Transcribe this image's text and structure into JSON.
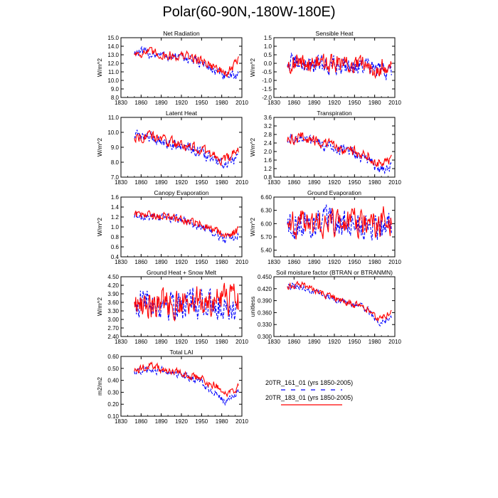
{
  "figure": {
    "title": "Polar(60-90N,-180W-180E)"
  },
  "legend": {
    "entries": [
      {
        "label": "20TR_161_01 (yrs 1850-2005)",
        "color": "#0000ff",
        "dash": "dashed"
      },
      {
        "label": "20TR_183_01 (yrs 1850-2005)",
        "color": "#ff0000",
        "dash": "solid"
      }
    ]
  },
  "chart_data": [
    {
      "type": "line",
      "title": "Net Radiation",
      "ylabel": "W/m^2",
      "xlim": [
        1830,
        2010
      ],
      "xticks": [
        1830,
        1860,
        1890,
        1920,
        1950,
        1980,
        2010
      ],
      "ylim": [
        8.0,
        15.0
      ],
      "yticks": [
        "8.0",
        "9.0",
        "10.0",
        "11.0",
        "12.0",
        "13.0",
        "14.0",
        "15.0"
      ],
      "x": [
        1850,
        2005
      ],
      "series": [
        {
          "name": "20TR_161_01 (yrs 1850-2005)",
          "color": "#0000ff",
          "anchors": [
            [
              1850,
              13.3
            ],
            [
              1870,
              13.2
            ],
            [
              1900,
              12.8
            ],
            [
              1930,
              12.6
            ],
            [
              1950,
              12.0
            ],
            [
              1965,
              11.3
            ],
            [
              1980,
              10.6
            ],
            [
              1990,
              10.3
            ],
            [
              2005,
              10.8
            ]
          ],
          "noise": 0.8
        },
        {
          "name": "20TR_183_01 (yrs 1850-2005)",
          "color": "#ff0000",
          "anchors": [
            [
              1850,
              13.2
            ],
            [
              1870,
              13.3
            ],
            [
              1900,
              12.9
            ],
            [
              1930,
              12.8
            ],
            [
              1950,
              12.3
            ],
            [
              1965,
              11.8
            ],
            [
              1980,
              11.0
            ],
            [
              1990,
              10.8
            ],
            [
              2005,
              12.5
            ]
          ],
          "noise": 0.8
        }
      ]
    },
    {
      "type": "line",
      "title": "Sensible Heat",
      "ylabel": "W/m^2",
      "xlim": [
        1830,
        2010
      ],
      "xticks": [
        1830,
        1860,
        1890,
        1920,
        1950,
        1980,
        2010
      ],
      "ylim": [
        -2.0,
        1.5
      ],
      "yticks": [
        "-2.0",
        "-1.5",
        "-1.0",
        "-0.5",
        "0.0",
        "0.5",
        "1.0",
        "1.5"
      ],
      "x": [
        1850,
        2005
      ],
      "series": [
        {
          "name": "20TR_161_01 (yrs 1850-2005)",
          "color": "#0000ff",
          "anchors": [
            [
              1850,
              0.0
            ],
            [
              1900,
              -0.1
            ],
            [
              1950,
              -0.1
            ],
            [
              1980,
              -0.4
            ],
            [
              2005,
              -0.5
            ]
          ],
          "noise": 0.75
        },
        {
          "name": "20TR_183_01 (yrs 1850-2005)",
          "color": "#ff0000",
          "anchors": [
            [
              1850,
              0.0
            ],
            [
              1900,
              0.0
            ],
            [
              1950,
              -0.1
            ],
            [
              1980,
              -0.2
            ],
            [
              2005,
              -0.1
            ]
          ],
          "noise": 0.75
        }
      ]
    },
    {
      "type": "line",
      "title": "Latent Heat",
      "ylabel": "W/m^2",
      "xlim": [
        1830,
        2010
      ],
      "xticks": [
        1830,
        1860,
        1890,
        1920,
        1950,
        1980,
        2010
      ],
      "ylim": [
        7.0,
        11.0
      ],
      "yticks": [
        "7.0",
        "8.0",
        "9.0",
        "10.0",
        "11.0"
      ],
      "x": [
        1850,
        2005
      ],
      "series": [
        {
          "name": "20TR_161_01 (yrs 1850-2005)",
          "color": "#0000ff",
          "anchors": [
            [
              1850,
              9.8
            ],
            [
              1870,
              9.7
            ],
            [
              1900,
              9.3
            ],
            [
              1930,
              9.0
            ],
            [
              1950,
              8.6
            ],
            [
              1970,
              8.1
            ],
            [
              1985,
              7.8
            ],
            [
              2005,
              8.3
            ]
          ],
          "noise": 0.5
        },
        {
          "name": "20TR_183_01 (yrs 1850-2005)",
          "color": "#ff0000",
          "anchors": [
            [
              1850,
              9.7
            ],
            [
              1870,
              9.8
            ],
            [
              1900,
              9.4
            ],
            [
              1930,
              9.1
            ],
            [
              1950,
              8.8
            ],
            [
              1970,
              8.4
            ],
            [
              1985,
              8.1
            ],
            [
              2005,
              8.8
            ]
          ],
          "noise": 0.5
        }
      ]
    },
    {
      "type": "line",
      "title": "Transpiration",
      "ylabel": "W/m^2",
      "xlim": [
        1830,
        2010
      ],
      "xticks": [
        1830,
        1860,
        1890,
        1920,
        1950,
        1980,
        2010
      ],
      "ylim": [
        0.8,
        3.6
      ],
      "yticks": [
        "0.8",
        "1.2",
        "1.6",
        "2.0",
        "2.4",
        "2.8",
        "3.2",
        "3.6"
      ],
      "x": [
        1850,
        2005
      ],
      "series": [
        {
          "name": "20TR_161_01 (yrs 1850-2005)",
          "color": "#0000ff",
          "anchors": [
            [
              1850,
              2.6
            ],
            [
              1870,
              2.6
            ],
            [
              1900,
              2.3
            ],
            [
              1930,
              2.1
            ],
            [
              1950,
              1.9
            ],
            [
              1970,
              1.6
            ],
            [
              1985,
              1.2
            ],
            [
              2005,
              1.3
            ]
          ],
          "noise": 0.35
        },
        {
          "name": "20TR_183_01 (yrs 1850-2005)",
          "color": "#ff0000",
          "anchors": [
            [
              1850,
              2.5
            ],
            [
              1870,
              2.7
            ],
            [
              1900,
              2.4
            ],
            [
              1930,
              2.2
            ],
            [
              1950,
              2.0
            ],
            [
              1970,
              1.8
            ],
            [
              1985,
              1.5
            ],
            [
              2005,
              1.6
            ]
          ],
          "noise": 0.35
        }
      ]
    },
    {
      "type": "line",
      "title": "Canopy Evaporation",
      "ylabel": "W/m^2",
      "xlim": [
        1830,
        2010
      ],
      "xticks": [
        1830,
        1860,
        1890,
        1920,
        1950,
        1980,
        2010
      ],
      "ylim": [
        0.4,
        1.6
      ],
      "yticks": [
        "0.4",
        "0.6",
        "0.8",
        "1.0",
        "1.2",
        "1.4",
        "1.6"
      ],
      "x": [
        1850,
        2005
      ],
      "series": [
        {
          "name": "20TR_161_01 (yrs 1850-2005)",
          "color": "#0000ff",
          "anchors": [
            [
              1850,
              1.2
            ],
            [
              1900,
              1.2
            ],
            [
              1930,
              1.1
            ],
            [
              1950,
              1.0
            ],
            [
              1970,
              0.85
            ],
            [
              1985,
              0.75
            ],
            [
              2005,
              0.85
            ]
          ],
          "noise": 0.12
        },
        {
          "name": "20TR_183_01 (yrs 1850-2005)",
          "color": "#ff0000",
          "anchors": [
            [
              1850,
              1.25
            ],
            [
              1900,
              1.2
            ],
            [
              1930,
              1.1
            ],
            [
              1950,
              1.05
            ],
            [
              1970,
              0.95
            ],
            [
              1985,
              0.8
            ],
            [
              2005,
              0.95
            ]
          ],
          "noise": 0.12
        }
      ]
    },
    {
      "type": "line",
      "title": "Ground Evaporation",
      "ylabel": "W/m^2",
      "xlim": [
        1830,
        2010
      ],
      "xticks": [
        1830,
        1860,
        1890,
        1920,
        1950,
        1980,
        2010
      ],
      "ylim": [
        5.25,
        6.6
      ],
      "yticks": [
        "5.40",
        "5.70",
        "6.00",
        "6.30",
        "6.60"
      ],
      "x": [
        1850,
        2005
      ],
      "series": [
        {
          "name": "20TR_161_01 (yrs 1850-2005)",
          "color": "#0000ff",
          "anchors": [
            [
              1850,
              6.0
            ],
            [
              1900,
              6.0
            ],
            [
              1950,
              5.95
            ],
            [
              2005,
              6.0
            ]
          ],
          "noise": 0.45
        },
        {
          "name": "20TR_183_01 (yrs 1850-2005)",
          "color": "#ff0000",
          "anchors": [
            [
              1850,
              6.0
            ],
            [
              1900,
              6.0
            ],
            [
              1950,
              6.0
            ],
            [
              2005,
              6.05
            ]
          ],
          "noise": 0.45
        }
      ]
    },
    {
      "type": "line",
      "title": "Ground Heat + Snow Melt",
      "ylabel": "W/m^2",
      "xlim": [
        1830,
        2010
      ],
      "xticks": [
        1830,
        1860,
        1890,
        1920,
        1950,
        1980,
        2010
      ],
      "ylim": [
        2.4,
        4.5
      ],
      "yticks": [
        "2.40",
        "2.70",
        "3.00",
        "3.30",
        "3.60",
        "3.90",
        "4.20",
        "4.50"
      ],
      "x": [
        1850,
        2005
      ],
      "series": [
        {
          "name": "20TR_161_01 (yrs 1850-2005)",
          "color": "#0000ff",
          "anchors": [
            [
              1850,
              3.6
            ],
            [
              1900,
              3.6
            ],
            [
              1950,
              3.55
            ],
            [
              2005,
              3.5
            ]
          ],
          "noise": 0.75
        },
        {
          "name": "20TR_183_01 (yrs 1850-2005)",
          "color": "#ff0000",
          "anchors": [
            [
              1850,
              3.6
            ],
            [
              1900,
              3.6
            ],
            [
              1950,
              3.6
            ],
            [
              2005,
              3.7
            ]
          ],
          "noise": 0.75
        }
      ]
    },
    {
      "type": "line",
      "title": "Soil moisture factor (BTRAN or BTRANMN)",
      "ylabel": "unitless",
      "xlim": [
        1830,
        2010
      ],
      "xticks": [
        1830,
        1860,
        1890,
        1920,
        1950,
        1980,
        2010
      ],
      "ylim": [
        0.3,
        0.45
      ],
      "yticks": [
        "0.300",
        "0.330",
        "0.360",
        "0.390",
        "0.420",
        "0.450"
      ],
      "x": [
        1850,
        2005
      ],
      "series": [
        {
          "name": "20TR_161_01 (yrs 1850-2005)",
          "color": "#0000ff",
          "anchors": [
            [
              1850,
              0.425
            ],
            [
              1870,
              0.425
            ],
            [
              1900,
              0.405
            ],
            [
              1930,
              0.39
            ],
            [
              1950,
              0.38
            ],
            [
              1970,
              0.365
            ],
            [
              1985,
              0.335
            ],
            [
              2005,
              0.345
            ]
          ],
          "noise": 0.012
        },
        {
          "name": "20TR_183_01 (yrs 1850-2005)",
          "color": "#ff0000",
          "anchors": [
            [
              1850,
              0.425
            ],
            [
              1870,
              0.43
            ],
            [
              1900,
              0.41
            ],
            [
              1930,
              0.39
            ],
            [
              1950,
              0.38
            ],
            [
              1970,
              0.37
            ],
            [
              1985,
              0.345
            ],
            [
              2005,
              0.36
            ]
          ],
          "noise": 0.012
        }
      ]
    },
    {
      "type": "line",
      "title": "Total LAI",
      "ylabel": "m2/m2",
      "xlim": [
        1830,
        2010
      ],
      "xticks": [
        1830,
        1860,
        1890,
        1920,
        1950,
        1980,
        2010
      ],
      "ylim": [
        0.1,
        0.6
      ],
      "yticks": [
        "0.10",
        "0.20",
        "0.30",
        "0.40",
        "0.50",
        "0.60"
      ],
      "x": [
        1850,
        2005
      ],
      "series": [
        {
          "name": "20TR_161_01 (yrs 1850-2005)",
          "color": "#0000ff",
          "anchors": [
            [
              1850,
              0.47
            ],
            [
              1870,
              0.5
            ],
            [
              1900,
              0.47
            ],
            [
              1930,
              0.43
            ],
            [
              1950,
              0.38
            ],
            [
              1970,
              0.3
            ],
            [
              1985,
              0.22
            ],
            [
              2005,
              0.3
            ]
          ],
          "noise": 0.045
        },
        {
          "name": "20TR_183_01 (yrs 1850-2005)",
          "color": "#ff0000",
          "anchors": [
            [
              1850,
              0.47
            ],
            [
              1870,
              0.52
            ],
            [
              1900,
              0.48
            ],
            [
              1930,
              0.45
            ],
            [
              1950,
              0.41
            ],
            [
              1970,
              0.36
            ],
            [
              1985,
              0.28
            ],
            [
              2005,
              0.35
            ]
          ],
          "noise": 0.045
        }
      ]
    }
  ]
}
